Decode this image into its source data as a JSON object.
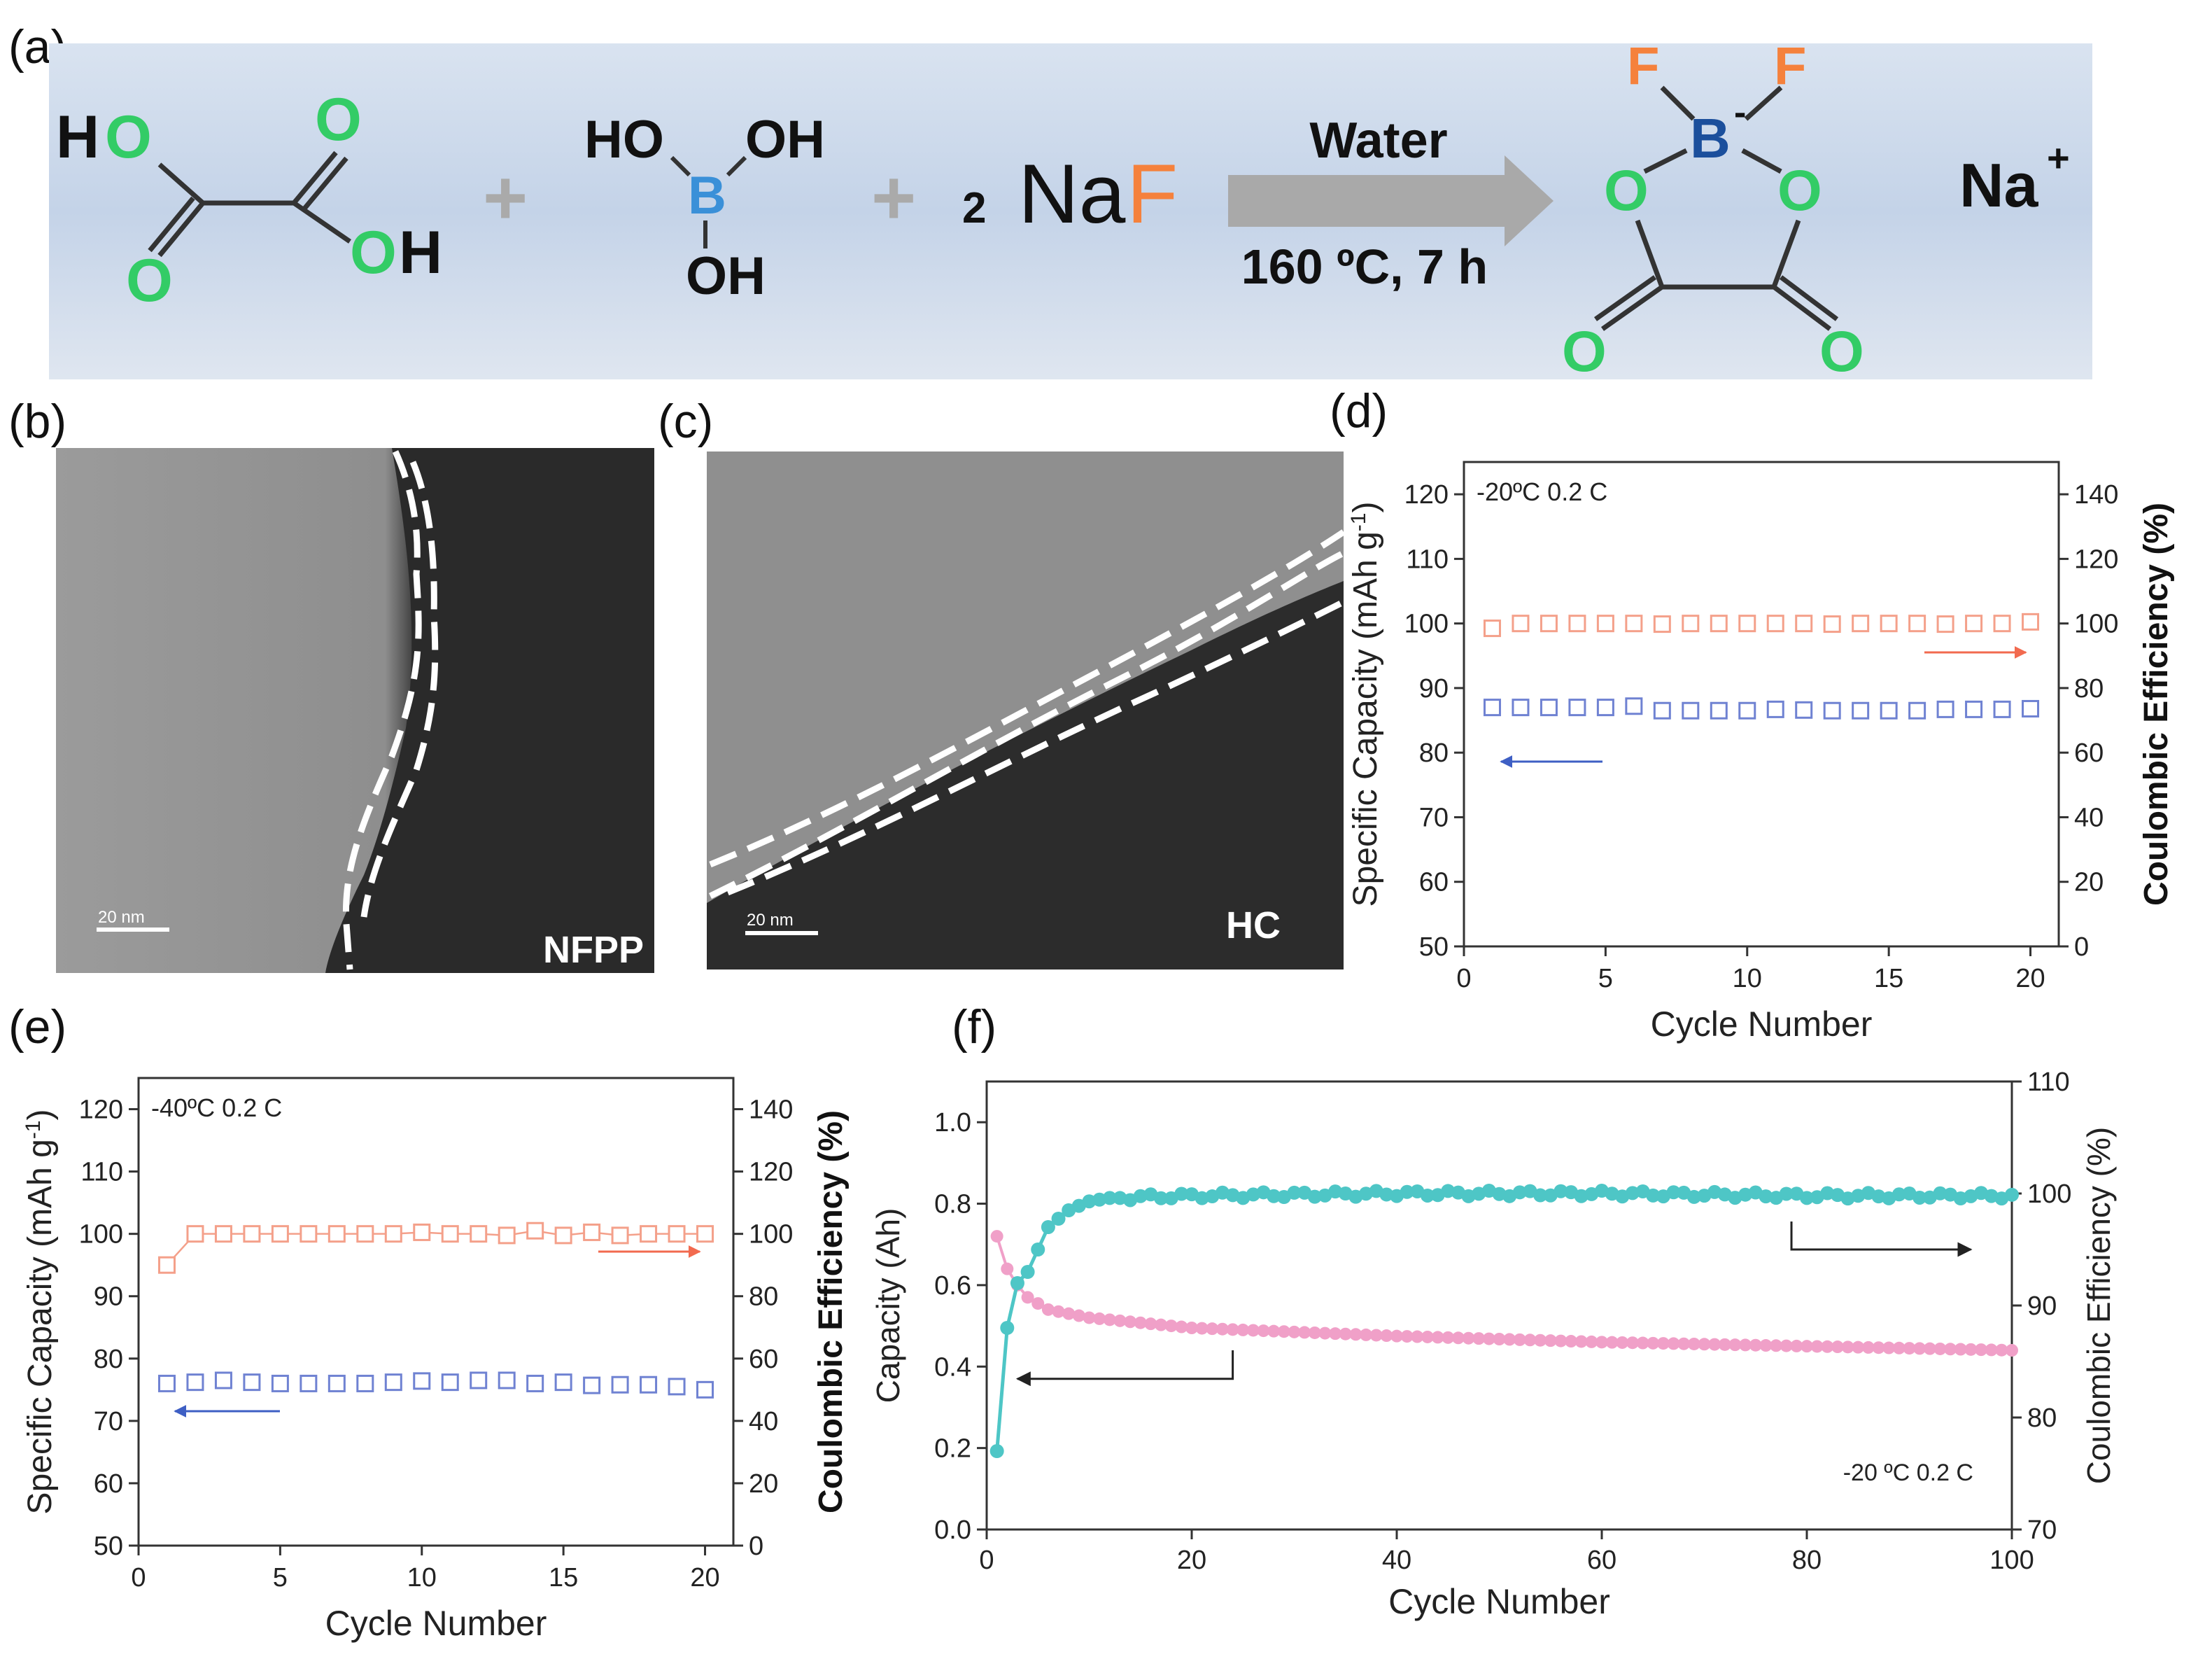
{
  "figure": {
    "panel_a": {
      "label": "(a)",
      "reactant1": {
        "h1": "H",
        "o1": "O",
        "o2": "O",
        "o3": "O",
        "o4": "O",
        "h2": "H"
      },
      "plus": "+",
      "reactant2": {
        "ho": "HO",
        "oh1": "OH",
        "b": "B",
        "oh2": "OH"
      },
      "coef": "2",
      "naf": {
        "na": "Na",
        "f": "F"
      },
      "arrow_top": "Water",
      "arrow_bottom": "160 ºC, 7 h",
      "product": {
        "f1": "F",
        "f2": "F",
        "b": "B",
        "charge": "-",
        "o1": "O",
        "o2": "O",
        "o3": "O",
        "o4": "O"
      },
      "cation": {
        "na": "Na",
        "charge": "+"
      }
    },
    "panel_b": {
      "label": "(b)",
      "scale": "20 nm",
      "name": "NFPP"
    },
    "panel_c": {
      "label": "(c)",
      "scale": "20 nm",
      "name": "HC"
    },
    "colors": {
      "green": "#33cc66",
      "orange": "#f5813c",
      "blue": "#3a90d8",
      "darkblue": "#1b4f9c",
      "teal": "#4ec6c6",
      "pink": "#f0a0c8",
      "orange_marker": "#f4a08a",
      "blue_marker": "#6f82d2"
    }
  },
  "chart_data": [
    {
      "panel": "(d)",
      "type": "scatter",
      "condition": "-20ºC  0.2 C",
      "xlabel": "Cycle Number",
      "ylabel_left": "Specific Capacity (mAh g",
      "ylabel_left_sup": "-1",
      "ylabel_left_end": ")",
      "ylabel_right": "Coulombic Efficiency (%)",
      "xlim": [
        0,
        21
      ],
      "xticks": [
        "0",
        "5",
        "10",
        "15",
        "20"
      ],
      "ylim_left": [
        50,
        125
      ],
      "yticks_left": [
        "50",
        "60",
        "70",
        "80",
        "90",
        "100",
        "110",
        "120"
      ],
      "ylim_right": [
        0,
        150
      ],
      "yticks_right": [
        "0",
        "20",
        "40",
        "60",
        "80",
        "100",
        "120",
        "140"
      ],
      "x": [
        1,
        2,
        3,
        4,
        5,
        6,
        7,
        8,
        9,
        10,
        11,
        12,
        13,
        14,
        15,
        16,
        17,
        18,
        19,
        20
      ],
      "series": [
        {
          "name": "Coulombic Efficiency",
          "axis": "right",
          "values": [
            98.5,
            100,
            100,
            100,
            100,
            100,
            99.8,
            100,
            100,
            100,
            100,
            100,
            99.8,
            100,
            100,
            100,
            99.8,
            100,
            100,
            100.5
          ]
        },
        {
          "name": "Specific Capacity",
          "axis": "left",
          "values": [
            87,
            87,
            87,
            87,
            87,
            87.2,
            86.5,
            86.5,
            86.5,
            86.5,
            86.7,
            86.6,
            86.5,
            86.5,
            86.5,
            86.5,
            86.7,
            86.7,
            86.7,
            86.8
          ]
        }
      ]
    },
    {
      "panel": "(e)",
      "type": "scatter",
      "condition": "-40ºC  0.2 C",
      "xlabel": "Cycle Number",
      "ylabel_left": "Specific Capacity (mAh g",
      "ylabel_left_sup": "-1",
      "ylabel_left_end": ")",
      "ylabel_right": "Coulombic Efficiency (%)",
      "xlim": [
        0,
        21
      ],
      "xticks": [
        "0",
        "5",
        "10",
        "15",
        "20"
      ],
      "ylim_left": [
        50,
        125
      ],
      "yticks_left": [
        "50",
        "60",
        "70",
        "80",
        "90",
        "100",
        "110",
        "120"
      ],
      "ylim_right": [
        0,
        150
      ],
      "yticks_right": [
        "0",
        "20",
        "40",
        "60",
        "80",
        "100",
        "120",
        "140"
      ],
      "x": [
        1,
        2,
        3,
        4,
        5,
        6,
        7,
        8,
        9,
        10,
        11,
        12,
        13,
        14,
        15,
        16,
        17,
        18,
        19,
        20
      ],
      "series": [
        {
          "name": "Coulombic Efficiency",
          "axis": "right",
          "values": [
            90,
            100,
            100,
            100,
            100,
            100,
            100,
            100,
            100,
            100.5,
            100,
            100,
            99.5,
            101,
            99.5,
            100.5,
            99.5,
            100,
            100,
            100
          ]
        },
        {
          "name": "Specific Capacity",
          "axis": "left",
          "values": [
            76,
            76.2,
            76.5,
            76.2,
            76,
            76,
            76,
            76,
            76.2,
            76.4,
            76.2,
            76.5,
            76.5,
            76,
            76.2,
            75.7,
            75.8,
            75.8,
            75.5,
            75
          ]
        }
      ]
    },
    {
      "panel": "(f)",
      "type": "line",
      "condition": "-20 ºC 0.2 C",
      "xlabel": "Cycle Number",
      "ylabel_left": "Capacity (Ah)",
      "ylabel_right": "Coulombic Efficiency (%)",
      "xlim": [
        0,
        100
      ],
      "xticks": [
        "0",
        "20",
        "40",
        "60",
        "80",
        "100"
      ],
      "ylim_left": [
        0,
        1.1
      ],
      "yticks_left": [
        "0.0",
        "0.2",
        "0.4",
        "0.6",
        "0.8",
        "1.0"
      ],
      "ylim_right": [
        70,
        110
      ],
      "yticks_right": [
        "70",
        "80",
        "90",
        "100",
        "110"
      ],
      "series": [
        {
          "name": "Coulombic Efficiency",
          "axis": "right",
          "description": "rises from ~77% at cycle 1 to ~100% by cycle 12, then stays ~100%",
          "anchors": [
            [
              1,
              77
            ],
            [
              2,
              88
            ],
            [
              3,
              92
            ],
            [
              4,
              93
            ],
            [
              5,
              95
            ],
            [
              6,
              97
            ],
            [
              8,
              98.5
            ],
            [
              10,
              99.3
            ],
            [
              12,
              99.6
            ],
            [
              20,
              99.8
            ],
            [
              40,
              100
            ],
            [
              60,
              100
            ],
            [
              80,
              99.8
            ],
            [
              100,
              99.8
            ]
          ]
        },
        {
          "name": "Capacity",
          "axis": "left",
          "description": "decays from 0.72 Ah at cycle 1 to ~0.44 Ah at cycle 100",
          "anchors": [
            [
              1,
              0.72
            ],
            [
              2,
              0.64
            ],
            [
              3,
              0.6
            ],
            [
              4,
              0.57
            ],
            [
              6,
              0.54
            ],
            [
              10,
              0.52
            ],
            [
              20,
              0.495
            ],
            [
              40,
              0.475
            ],
            [
              60,
              0.46
            ],
            [
              80,
              0.45
            ],
            [
              100,
              0.44
            ]
          ]
        }
      ]
    }
  ]
}
